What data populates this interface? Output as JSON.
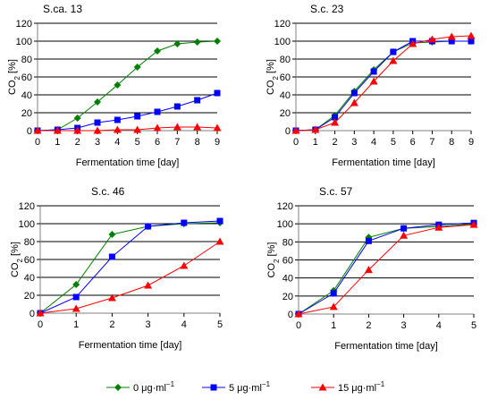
{
  "colors": {
    "series": [
      "#008000",
      "#0000ff",
      "#ff0000"
    ],
    "axis": "#808080",
    "grid": "#000000",
    "background": "#ffffff"
  },
  "legend": {
    "placement": "bottom",
    "items": [
      {
        "label": "0 μg·ml",
        "sup": "−1",
        "marker": "diamond"
      },
      {
        "label": "5  μg·ml",
        "sup": "−1",
        "marker": "square"
      },
      {
        "label": "15  μg·ml",
        "sup": "−1",
        "marker": "triangle"
      }
    ]
  },
  "chart_data": [
    {
      "type": "line",
      "title": "S.ca. 13",
      "xlabel": "Fermentation time [day]",
      "ylabel": "CO",
      "ylabel_sub": "2",
      "ylabel_unit": " [%]",
      "grid": true,
      "xlim": [
        0,
        9
      ],
      "ylim": [
        0,
        120
      ],
      "x_ticks": [
        0,
        1,
        2,
        3,
        4,
        5,
        6,
        7,
        8,
        9
      ],
      "y_ticks": [
        0,
        20,
        40,
        60,
        80,
        100,
        120
      ],
      "series": [
        {
          "x": [
            0,
            1,
            2,
            3,
            4,
            5,
            6,
            7,
            8,
            9
          ],
          "values": [
            0,
            1,
            14,
            32,
            51,
            71,
            89,
            97,
            99,
            100
          ]
        },
        {
          "x": [
            0,
            1,
            2,
            3,
            4,
            5,
            6,
            7,
            8,
            9
          ],
          "values": [
            0,
            1,
            3,
            9,
            12,
            16,
            21,
            27,
            34,
            42
          ]
        },
        {
          "x": [
            0,
            1,
            2,
            3,
            4,
            5,
            6,
            7,
            8,
            9
          ],
          "values": [
            0,
            0,
            0,
            0,
            1,
            1,
            3,
            4,
            4,
            3
          ]
        }
      ]
    },
    {
      "type": "line",
      "title": "S.c. 23",
      "xlabel": "Fermentation time [day]",
      "ylabel": "CO",
      "ylabel_sub": "2",
      "ylabel_unit": " [%]",
      "grid": true,
      "xlim": [
        0,
        9
      ],
      "ylim": [
        0,
        120
      ],
      "x_ticks": [
        0,
        1,
        2,
        3,
        4,
        5,
        6,
        7,
        8,
        9
      ],
      "y_ticks": [
        0,
        20,
        40,
        60,
        80,
        100,
        120
      ],
      "series": [
        {
          "x": [
            0,
            1,
            2,
            3,
            4,
            5,
            6,
            7,
            8,
            9
          ],
          "values": [
            0,
            1,
            17,
            44,
            68,
            88,
            98,
            99,
            100,
            100
          ]
        },
        {
          "x": [
            0,
            1,
            2,
            3,
            4,
            5,
            6,
            7,
            8,
            9
          ],
          "values": [
            0,
            1,
            15,
            42,
            66,
            88,
            100,
            100,
            100,
            100
          ]
        },
        {
          "x": [
            0,
            1,
            2,
            3,
            4,
            5,
            6,
            7,
            8,
            9
          ],
          "values": [
            0,
            1,
            9,
            31,
            55,
            78,
            97,
            102,
            105,
            106
          ]
        }
      ]
    },
    {
      "type": "line",
      "title": "S.c. 46",
      "xlabel": "Fermentation time [day]",
      "ylabel": "CO",
      "ylabel_sub": "2",
      "ylabel_unit": " [%]",
      "grid": true,
      "xlim": [
        0,
        5
      ],
      "ylim": [
        0,
        120
      ],
      "x_ticks": [
        0,
        1,
        2,
        3,
        4,
        5
      ],
      "y_ticks": [
        0,
        20,
        40,
        60,
        80,
        100,
        120
      ],
      "series": [
        {
          "x": [
            0,
            1,
            2,
            3,
            4,
            5
          ],
          "values": [
            0,
            32,
            88,
            97,
            100,
            101
          ]
        },
        {
          "x": [
            0,
            1,
            2,
            3,
            4,
            5
          ],
          "values": [
            0,
            18,
            63,
            97,
            101,
            103
          ]
        },
        {
          "x": [
            0,
            1,
            2,
            3,
            4,
            5
          ],
          "values": [
            0,
            5,
            17,
            31,
            53,
            80
          ]
        }
      ]
    },
    {
      "type": "line",
      "title": "S.c. 57",
      "xlabel": "Fermentation time [day]",
      "ylabel": "CO",
      "ylabel_sub": "2",
      "ylabel_unit": " [%]",
      "grid": true,
      "xlim": [
        0,
        5
      ],
      "ylim": [
        0,
        120
      ],
      "x_ticks": [
        0,
        1,
        2,
        3,
        4,
        5
      ],
      "y_ticks": [
        0,
        20,
        40,
        60,
        80,
        100,
        120
      ],
      "series": [
        {
          "x": [
            0,
            1,
            2,
            3,
            4,
            5
          ],
          "values": [
            0,
            26,
            85,
            95,
            97,
            100
          ]
        },
        {
          "x": [
            0,
            1,
            2,
            3,
            4,
            5
          ],
          "values": [
            0,
            23,
            81,
            95,
            99,
            101
          ]
        },
        {
          "x": [
            0,
            1,
            2,
            3,
            4,
            5
          ],
          "values": [
            0,
            8,
            49,
            87,
            96,
            99
          ]
        }
      ]
    }
  ]
}
